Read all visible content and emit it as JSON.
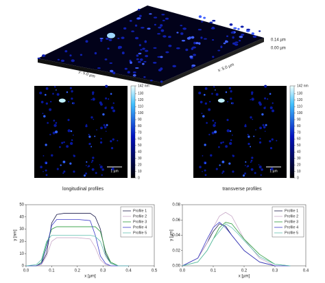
{
  "surface": {
    "z_top": "0.14 µm",
    "z_bottom": "0.00 µm",
    "y_label": "y: 5.0 µm",
    "x_label": "x: 5.0 µm"
  },
  "maps": [
    {
      "caption": "longitudinal profiles",
      "scale_bar": "1 µm",
      "colorbar": {
        "lim": [
          0,
          142
        ],
        "ticks": [
          0,
          10,
          20,
          30,
          40,
          50,
          60,
          70,
          80,
          90,
          100,
          110,
          120,
          130,
          {
            "value": 142,
            "label": "142 nm"
          }
        ]
      }
    },
    {
      "caption": "transverse profiles",
      "scale_bar": "1 µm",
      "colorbar": {
        "lim": [
          0,
          142
        ],
        "ticks": [
          0,
          10,
          20,
          30,
          40,
          50,
          60,
          70,
          80,
          90,
          100,
          110,
          120,
          130,
          {
            "value": 142,
            "label": "142 nm"
          }
        ]
      }
    }
  ],
  "chart_data": [
    {
      "type": "line",
      "xlabel": "x [µm]",
      "ylabel": "y [nm]",
      "legend": "upper right",
      "x": [
        0,
        0.04,
        0.06,
        0.08,
        0.1,
        0.12,
        0.15,
        0.2,
        0.25,
        0.27,
        0.29,
        0.31,
        0.33,
        0.36,
        0.4
      ],
      "xlim": [
        0,
        0.5
      ],
      "xticks": [
        {
          "value": 0,
          "label": "0.0"
        },
        0.1,
        0.2,
        0.3,
        0.4,
        0.5
      ],
      "ylim": [
        0,
        50
      ],
      "yticks": [
        0,
        10,
        20,
        30,
        40,
        50
      ],
      "series": [
        {
          "name": "Profile 1",
          "color": "#1a1a4a",
          "values": [
            0,
            0,
            2,
            10,
            35,
            42,
            43,
            43,
            43,
            40,
            30,
            10,
            2,
            0,
            0
          ]
        },
        {
          "name": "Profile 2",
          "color": "#c8a8c8",
          "values": [
            0,
            0,
            1,
            8,
            20,
            23,
            23,
            23,
            22,
            15,
            5,
            1,
            0,
            0,
            0
          ]
        },
        {
          "name": "Profile 3",
          "color": "#2a9a3a",
          "values": [
            0,
            0,
            3,
            18,
            30,
            32,
            32,
            32,
            32,
            32,
            28,
            12,
            3,
            0,
            0
          ]
        },
        {
          "name": "Profile 4",
          "color": "#3a3ac8",
          "values": [
            0,
            0,
            2,
            15,
            33,
            38,
            38,
            38,
            37,
            25,
            8,
            2,
            0,
            0,
            0
          ]
        },
        {
          "name": "Profile 5",
          "color": "#60c0b0",
          "values": [
            0,
            1,
            5,
            20,
            25,
            25,
            25,
            25,
            25,
            24,
            20,
            8,
            2,
            0,
            0
          ]
        }
      ]
    },
    {
      "type": "line",
      "xlabel": "x [µm]",
      "ylabel": "y [µm]",
      "legend": "upper right",
      "x": [
        0,
        0.05,
        0.08,
        0.1,
        0.12,
        0.14,
        0.16,
        0.18,
        0.2,
        0.25,
        0.3,
        0.35
      ],
      "xlim": [
        0,
        0.4
      ],
      "xticks": [
        {
          "value": 0,
          "label": "0.0"
        },
        0.1,
        0.2,
        0.3,
        0.4
      ],
      "ylim": [
        0,
        0.08
      ],
      "yticks": [
        {
          "value": 0,
          "label": "0.00"
        },
        {
          "value": 0.02,
          "label": "0.02"
        },
        {
          "value": 0.04,
          "label": "0.04"
        },
        {
          "value": 0.06,
          "label": "0.06"
        },
        {
          "value": 0.08,
          "label": "0.08"
        }
      ],
      "series": [
        {
          "name": "Profile 1",
          "color": "#1a1a4a",
          "values": [
            0,
            0.01,
            0.03,
            0.045,
            0.055,
            0.052,
            0.04,
            0.03,
            0.02,
            0.005,
            0,
            0
          ]
        },
        {
          "name": "Profile 2",
          "color": "#c8a8c8",
          "values": [
            0,
            0.01,
            0.03,
            0.05,
            0.065,
            0.07,
            0.065,
            0.05,
            0.035,
            0.01,
            0,
            0
          ]
        },
        {
          "name": "Profile 3",
          "color": "#2a9a3a",
          "values": [
            0,
            0.005,
            0.02,
            0.035,
            0.05,
            0.057,
            0.055,
            0.045,
            0.035,
            0.015,
            0.002,
            0
          ]
        },
        {
          "name": "Profile 4",
          "color": "#3a3ac8",
          "values": [
            0,
            0.01,
            0.035,
            0.05,
            0.057,
            0.05,
            0.04,
            0.03,
            0.02,
            0.005,
            0,
            0
          ]
        },
        {
          "name": "Profile 5",
          "color": "#60c0b0",
          "values": [
            0,
            0.005,
            0.02,
            0.035,
            0.045,
            0.055,
            0.05,
            0.042,
            0.033,
            0.012,
            0.002,
            0
          ]
        }
      ]
    }
  ]
}
